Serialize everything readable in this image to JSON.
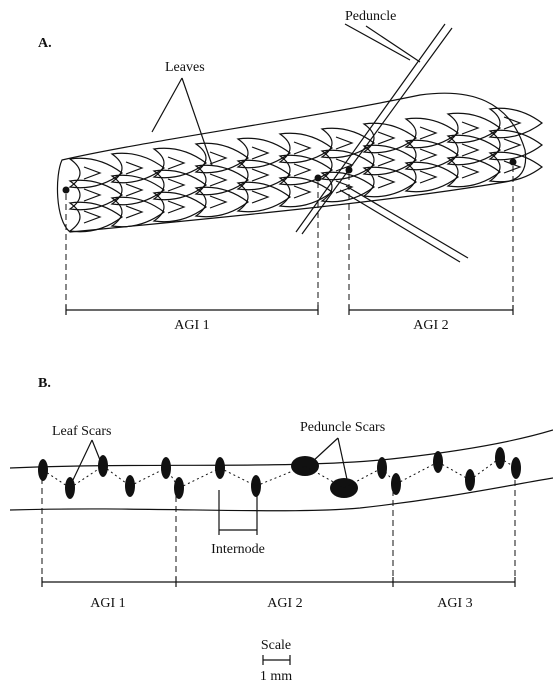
{
  "panel_a": {
    "label": "A.",
    "annotations": {
      "peduncle": "Peduncle",
      "leaves": "Leaves"
    },
    "segments": [
      "AGI 1",
      "AGI 2"
    ]
  },
  "panel_b": {
    "label": "B.",
    "annotations": {
      "leaf_scars": "Leaf Scars",
      "peduncle_scars": "Peduncle Scars",
      "internode": "Internode"
    },
    "segments": [
      "AGI 1",
      "AGI 2",
      "AGI 3"
    ]
  },
  "scale": {
    "label": "Scale",
    "length": "1 mm"
  }
}
